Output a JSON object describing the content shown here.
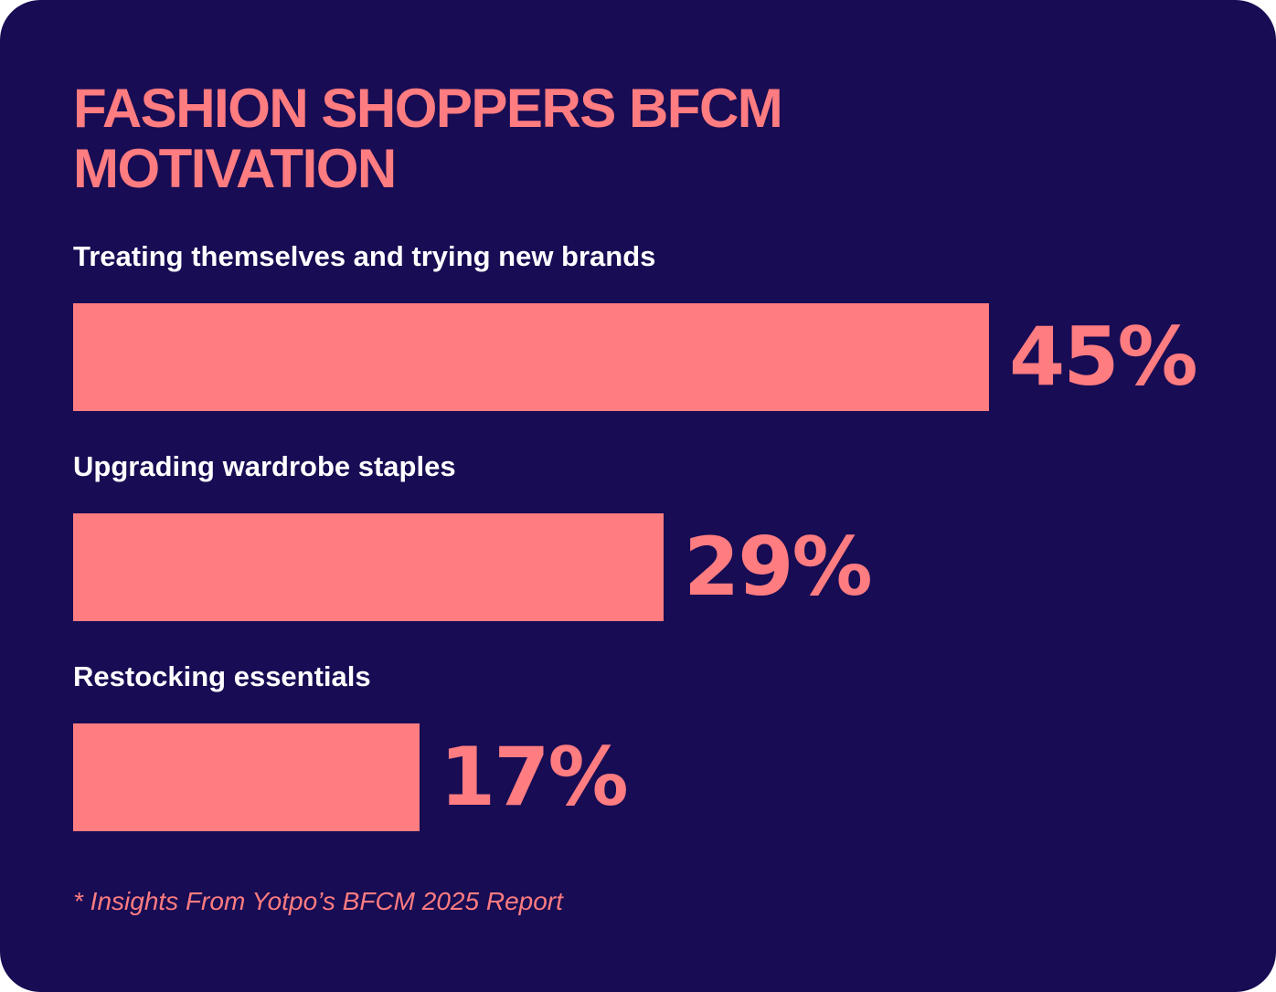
{
  "colors": {
    "background": "#180c54",
    "accent": "#ff7c80",
    "label": "#ffffff"
  },
  "footnote": "* Insights From Yotpo’s BFCM 2025 Report",
  "chart_data": {
    "type": "bar",
    "orientation": "horizontal",
    "title": "FASHION SHOPPERS BFCM MOTIVATION",
    "categories": [
      "Treating themselves and trying new brands",
      "Upgrading wardrobe staples",
      "Restocking essentials"
    ],
    "values": [
      45,
      29,
      17
    ],
    "value_labels": [
      "45%",
      "29%",
      "17%"
    ],
    "unit": "%",
    "grid": false,
    "axes_visible": false
  }
}
